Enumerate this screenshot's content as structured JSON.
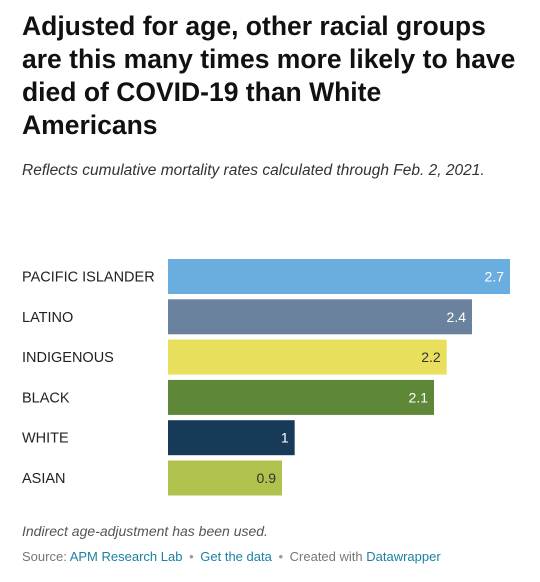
{
  "header": {
    "title": "Adjusted for age, other racial groups are this many times more likely to have died of COVID-19 than White Americans",
    "subtitle": "Reflects cumulative mortality rates calculated through Feb. 2, 2021."
  },
  "chart_data": {
    "type": "bar",
    "orientation": "horizontal",
    "categories": [
      "PACIFIC ISLANDER",
      "LATINO",
      "INDIGENOUS",
      "BLACK",
      "WHITE",
      "ASIAN"
    ],
    "values": [
      2.7,
      2.4,
      2.2,
      2.1,
      1,
      0.9
    ],
    "value_labels": [
      "2.7",
      "2.4",
      "2.2",
      "2.1",
      "1",
      "0.9"
    ],
    "colors": [
      "#6aaedf",
      "#6b829e",
      "#e8e05c",
      "#5e8838",
      "#173a58",
      "#b0c14e"
    ],
    "label_colors": [
      "#ffffff",
      "#ffffff",
      "#333333",
      "#ffffff",
      "#ffffff",
      "#333333"
    ],
    "xlim": [
      0,
      2.7
    ],
    "grid": false,
    "legend": "none"
  },
  "notes": "Indirect age-adjustment has been used.",
  "footer": {
    "source_prefix": "Source:",
    "source_link": "APM Research Lab",
    "separator": "•",
    "data_link": "Get the data",
    "created_prefix": "Created with",
    "created_link": "Datawrapper"
  }
}
